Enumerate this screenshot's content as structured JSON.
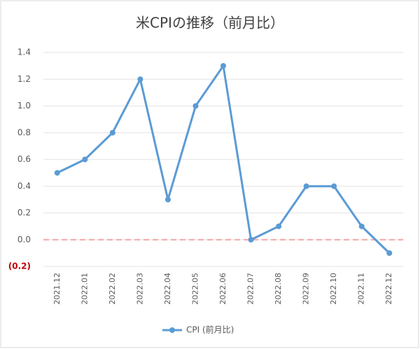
{
  "chart_data": {
    "type": "line",
    "title": "米CPIの推移（前月比）",
    "categories": [
      "2021.12",
      "2022.01",
      "2022.02",
      "2022.03",
      "2022.04",
      "2022.05",
      "2022.06",
      "2022.07",
      "2022.08",
      "2022.09",
      "2022.10",
      "2022.11",
      "2022.12"
    ],
    "series": [
      {
        "name": "CPI (前月比)",
        "color": "#5b9bd5",
        "values": [
          0.5,
          0.6,
          0.8,
          1.2,
          0.3,
          1.0,
          1.3,
          0.0,
          0.1,
          0.4,
          0.4,
          0.1,
          -0.1
        ]
      }
    ],
    "ylim": [
      -0.2,
      1.4
    ],
    "yticks": [
      {
        "value": -0.2,
        "label": "(0.2)"
      },
      {
        "value": 0,
        "label": "0.0"
      },
      0.2,
      0.4,
      0.6,
      0.8,
      {
        "value": 1,
        "label": "1.0"
      },
      1.2,
      1.4
    ],
    "negative_label_color": "#c00000",
    "reference_line": {
      "value": 0,
      "color": "#f4a6a6"
    },
    "grid": true,
    "legend": "bottom"
  }
}
